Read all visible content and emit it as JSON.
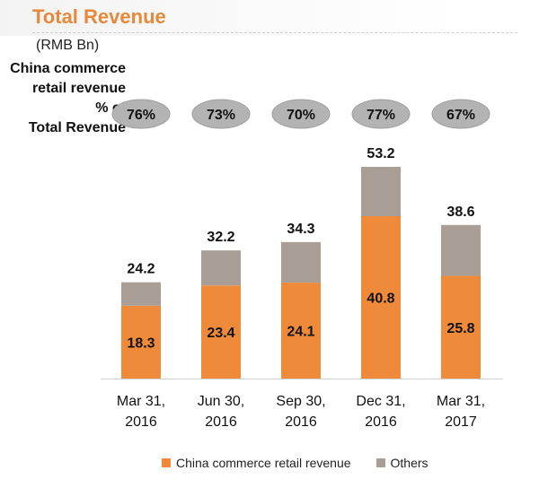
{
  "title": "Total Revenue",
  "unit": "(RMB Bn)",
  "row_label": [
    "China commerce",
    "retail revenue",
    "% of",
    "Total Revenue"
  ],
  "colors": {
    "title": "#e8883a",
    "retail": "#ee8a3a",
    "others": "#a99e95",
    "pill": "#b3b3b3"
  },
  "chart_data": {
    "type": "bar",
    "stacked": true,
    "title": "Total Revenue",
    "ylabel": "(RMB Bn)",
    "categories": [
      [
        "Mar 31,",
        "2016"
      ],
      [
        "Jun 30,",
        "2016"
      ],
      [
        "Sep 30,",
        "2016"
      ],
      [
        "Dec 31,",
        "2016"
      ],
      [
        "Mar 31,",
        "2017"
      ]
    ],
    "series": [
      {
        "name": "China commerce retail revenue",
        "values": [
          18.3,
          23.4,
          24.1,
          40.8,
          25.8
        ]
      },
      {
        "name": "Others",
        "values": [
          5.9,
          8.8,
          10.2,
          12.4,
          12.8
        ]
      }
    ],
    "totals": [
      "24.2",
      "32.2",
      "34.3",
      "53.2",
      "38.6"
    ],
    "retail_labels": [
      "18.3",
      "23.4",
      "24.1",
      "40.8",
      "25.8"
    ],
    "percent_of_total": [
      "76%",
      "73%",
      "70%",
      "77%",
      "67%"
    ],
    "legend": [
      "China commerce retail revenue",
      "Others"
    ],
    "ylim": [
      0,
      53.2
    ]
  }
}
